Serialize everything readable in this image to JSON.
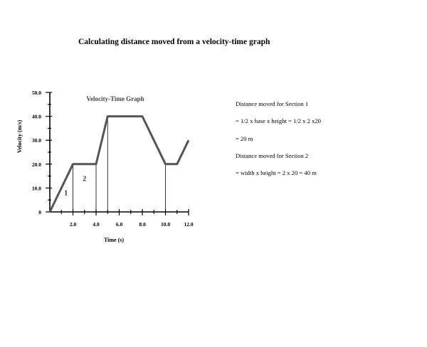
{
  "page": {
    "title": "Calculating distance moved from a velocity-time graph"
  },
  "explanation": {
    "lines": [
      "Distance moved for Section 1",
      "=  1/2 x base x height = 1/2 x 2 x20",
      "= 20 m",
      "Distance moved for Section 2",
      "= width x height = 2 x 20 = 40 m"
    ]
  },
  "chart_data": {
    "type": "line",
    "title": "Velocity-Time Graph",
    "xlabel": "Time (s)",
    "ylabel": "Velocity (m/s)",
    "xlim": [
      0,
      12
    ],
    "ylim": [
      0,
      50
    ],
    "x_ticks": [
      2,
      4,
      6,
      8,
      10,
      12
    ],
    "x_tick_labels": [
      "2.0",
      "4.0",
      "6.0",
      "8.0",
      "10.0",
      "12.0"
    ],
    "y_ticks": [
      0,
      10,
      20,
      30,
      40,
      50
    ],
    "y_tick_labels": [
      "0",
      "10.0",
      "20.0",
      "30.0",
      "40.0",
      "50.0"
    ],
    "series": [
      {
        "x": [
          0,
          2,
          4,
          5,
          8,
          10,
          11,
          12
        ],
        "y": [
          0,
          20,
          20,
          40,
          40,
          20,
          20,
          30
        ]
      }
    ],
    "drop_lines_x": [
      2,
      4,
      5,
      10
    ],
    "region_labels": [
      {
        "text": "1",
        "x": 1.4,
        "y": 7
      },
      {
        "text": "2",
        "x": 3.0,
        "y": 13
      }
    ],
    "line_color": "#555555",
    "grid": false
  }
}
